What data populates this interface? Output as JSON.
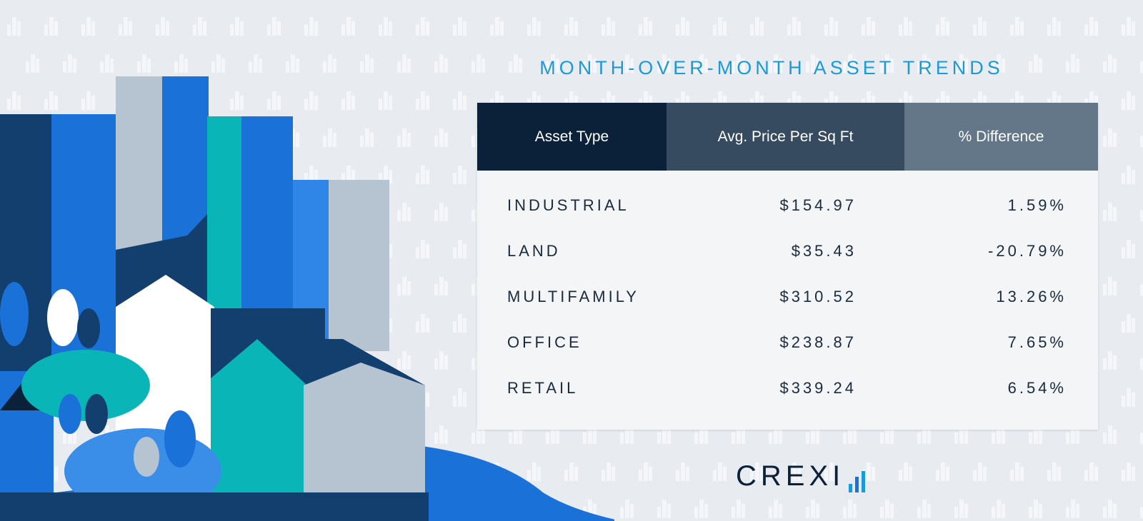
{
  "title": "MONTH-OVER-MONTH ASSET TRENDS",
  "colors": {
    "title": "#1a9ad9",
    "header_1": "#0a2139",
    "header_2": "#364b60",
    "header_3": "#647788",
    "brand_blue": "#1a72d9",
    "teal": "#0ab5b8"
  },
  "chart_data": {
    "type": "table",
    "title": "MONTH-OVER-MONTH ASSET TRENDS",
    "columns": [
      "Asset Type",
      "Avg. Price Per Sq Ft",
      "% Difference"
    ],
    "rows": [
      {
        "asset": "INDUSTRIAL",
        "price": "$154.97",
        "diff": "1.59%"
      },
      {
        "asset": "LAND",
        "price": "$35.43",
        "diff": "-20.79%"
      },
      {
        "asset": "MULTIFAMILY",
        "price": "$310.52",
        "diff": "13.26%"
      },
      {
        "asset": "OFFICE",
        "price": "$238.87",
        "diff": "7.65%"
      },
      {
        "asset": "RETAIL",
        "price": "$339.24",
        "diff": "6.54%"
      }
    ]
  },
  "logo": {
    "text": "CREXI",
    "icon": "bar-chart-logo-icon"
  }
}
